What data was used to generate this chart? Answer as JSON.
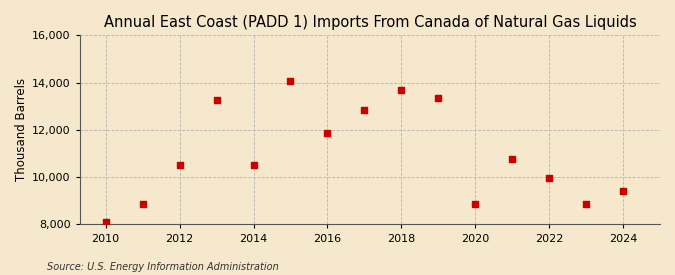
{
  "title": "Annual East Coast (PADD 1) Imports From Canada of Natural Gas Liquids",
  "ylabel": "Thousand Barrels",
  "source": "Source: U.S. Energy Information Administration",
  "background_color": "#f5e8cc",
  "plot_background_color": "#f5e8cc",
  "years": [
    2010,
    2011,
    2012,
    2013,
    2014,
    2015,
    2016,
    2017,
    2018,
    2019,
    2020,
    2021,
    2022,
    2023,
    2024
  ],
  "values": [
    8100,
    8850,
    10500,
    13250,
    10500,
    14050,
    11850,
    12850,
    13700,
    13350,
    8850,
    10750,
    9950,
    8850,
    9400
  ],
  "marker_color": "#cc0000",
  "marker_size": 5,
  "ylim": [
    8000,
    16000
  ],
  "yticks": [
    8000,
    10000,
    12000,
    14000,
    16000
  ],
  "xticks": [
    2010,
    2012,
    2014,
    2016,
    2018,
    2020,
    2022,
    2024
  ],
  "grid_color": "#b0b0b0",
  "title_fontsize": 10.5,
  "label_fontsize": 8.5,
  "tick_fontsize": 8,
  "source_fontsize": 7
}
